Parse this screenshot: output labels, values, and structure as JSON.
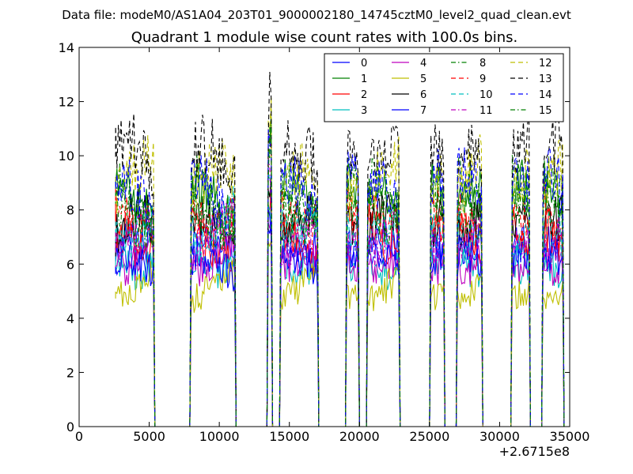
{
  "figure": {
    "suptitle": "Data file: modeM0/AS1A04_203T01_9000002180_14745cztM0_level2_quad_clean.evt"
  },
  "chart_data": {
    "type": "line",
    "title": "Quadrant 1 module wise count rates with 100.0s bins.",
    "xlabel": "",
    "ylabel": "",
    "x_offset_label": "+2.6715e8",
    "xlim": [
      0,
      35000
    ],
    "ylim": [
      0,
      14
    ],
    "xticks": [
      0,
      5000,
      10000,
      15000,
      20000,
      25000,
      30000,
      35000
    ],
    "yticks": [
      0,
      2,
      4,
      6,
      8,
      10,
      12,
      14
    ],
    "grid": false,
    "legend_location": "upper-right",
    "legend_columns": 4,
    "segments": [
      {
        "start": 2600,
        "end": 5300
      },
      {
        "start": 8000,
        "end": 11100
      },
      {
        "start": 13500,
        "end": 13700
      },
      {
        "start": 14400,
        "end": 17000
      },
      {
        "start": 19100,
        "end": 19900
      },
      {
        "start": 20600,
        "end": 22800
      },
      {
        "start": 25100,
        "end": 26000
      },
      {
        "start": 27000,
        "end": 28700
      },
      {
        "start": 30900,
        "end": 32100
      },
      {
        "start": 33100,
        "end": 34500
      }
    ],
    "series": [
      {
        "name": "0",
        "color": "#0000ff",
        "dash": "solid",
        "level": 6.4
      },
      {
        "name": "1",
        "color": "#008000",
        "dash": "solid",
        "level": 8.2
      },
      {
        "name": "2",
        "color": "#ff0000",
        "dash": "solid",
        "level": 6.9
      },
      {
        "name": "3",
        "color": "#00bfbf",
        "dash": "solid",
        "level": 6.2
      },
      {
        "name": "4",
        "color": "#bf00bf",
        "dash": "solid",
        "level": 6.4
      },
      {
        "name": "5",
        "color": "#bfbf00",
        "dash": "solid",
        "level": 5.1
      },
      {
        "name": "6",
        "color": "#000000",
        "dash": "solid",
        "level": 7.3
      },
      {
        "name": "7",
        "color": "#0000ff",
        "dash": "solid",
        "level": 5.9
      },
      {
        "name": "8",
        "color": "#008000",
        "dash": "dashdot",
        "level": 8.4
      },
      {
        "name": "9",
        "color": "#ff0000",
        "dash": "dashed",
        "level": 7.9
      },
      {
        "name": "10",
        "color": "#00bfbf",
        "dash": "dashed",
        "level": 7.6
      },
      {
        "name": "11",
        "color": "#bf00bf",
        "dash": "dashdot",
        "level": 7.1
      },
      {
        "name": "12",
        "color": "#bfbf00",
        "dash": "dashed",
        "level": 9.0
      },
      {
        "name": "13",
        "color": "#000000",
        "dash": "dashed",
        "level": 9.6
      },
      {
        "name": "14",
        "color": "#0000ff",
        "dash": "dashed",
        "level": 8.6
      },
      {
        "name": "15",
        "color": "#008000",
        "dash": "dashdot",
        "level": 8.0
      }
    ]
  }
}
